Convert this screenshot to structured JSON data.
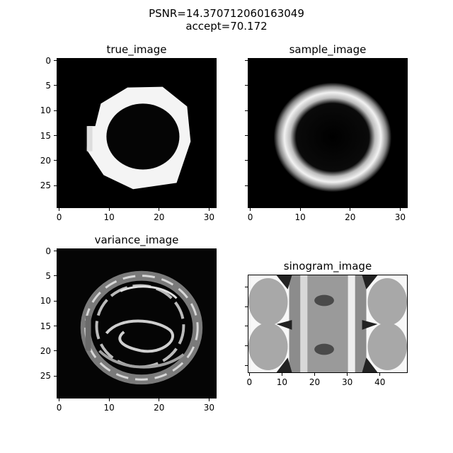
{
  "figure": {
    "suptitle_line1": "PSNR=14.370712060163049",
    "suptitle_line2": "accept=70.172"
  },
  "chart_data": [
    {
      "type": "heatmap",
      "title": "true_image",
      "colormap": "gray",
      "x_ticks": [
        "0",
        "10",
        "20",
        "30"
      ],
      "y_ticks": [
        "0",
        "5",
        "10",
        "15",
        "20",
        "25"
      ],
      "xlim": [
        -0.5,
        31.5
      ],
      "ylim": [
        29.5,
        -0.5
      ],
      "shape": "filled white ring (outer radius ~10, inner ~6), centered near x=16, y=15; hexagonal outer boundary"
    },
    {
      "type": "heatmap",
      "title": "sample_image",
      "colormap": "gray",
      "x_ticks": [
        "0",
        "10",
        "20",
        "30"
      ],
      "y_ticks": [],
      "xlim": [
        -0.5,
        31.5
      ],
      "ylim": [
        29.5,
        -0.5
      ],
      "shape": "smooth white ring (outer radius ~10, inner ~7), centered near x=16, y=15"
    },
    {
      "type": "heatmap",
      "title": "variance_image",
      "colormap": "gray",
      "x_ticks": [
        "0",
        "10",
        "20",
        "30"
      ],
      "y_ticks": [
        "0",
        "5",
        "10",
        "15",
        "20",
        "25"
      ],
      "xlim": [
        -0.5,
        31.5
      ],
      "ylim": [
        29.5,
        -0.5
      ],
      "shape": "noisy ring-like variance pattern around the same circle with internal curved bands"
    },
    {
      "type": "heatmap",
      "title": "sinogram_image",
      "colormap": "gray",
      "x_ticks": [
        "0",
        "10",
        "20",
        "30",
        "40"
      ],
      "y_ticks": [],
      "xlim": [
        -0.5,
        48.5
      ],
      "ylim": [
        19.5,
        -0.5
      ],
      "shape": "light sinogram with vertical bands, dark blobs near columns 5, 24 and 42"
    }
  ]
}
